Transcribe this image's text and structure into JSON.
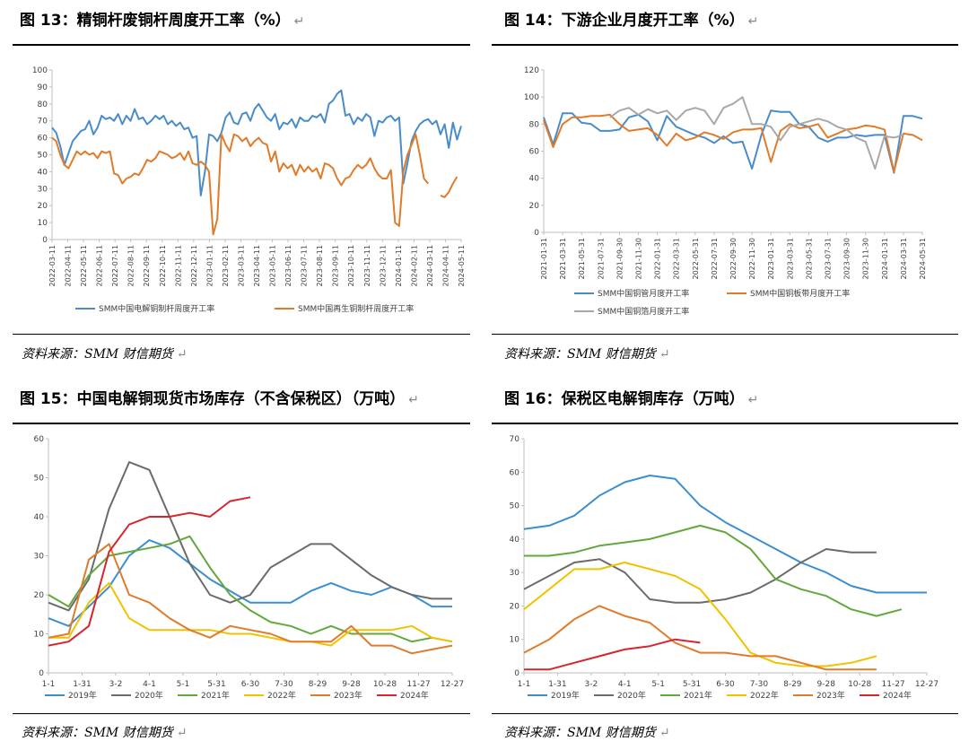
{
  "panels": [
    {
      "title": "图 13：精铜杆废铜杆周度开工率（%）",
      "source": "资料来源：SMM 财信期货"
    },
    {
      "title": "图 14：下游企业月度开工率（%）",
      "source": "资料来源：SMM 财信期货"
    },
    {
      "title": "图 15：中国电解铜现货市场库存（不含保税区）（万吨）",
      "source": "资料来源：SMM 财信期货"
    },
    {
      "title": "图 16：保税区电解铜库存（万吨）",
      "source": "资料来源：SMM 财信期货"
    }
  ],
  "return_glyph": "↵",
  "chart_data": [
    {
      "type": "line",
      "ylim": [
        0,
        100
      ],
      "yticks": [
        0,
        10,
        20,
        30,
        40,
        50,
        60,
        70,
        80,
        90,
        100
      ],
      "xtick_labels": [
        "2022-03-11",
        "2022-04-11",
        "2022-05-11",
        "2022-06-11",
        "2022-07-11",
        "2022-08-11",
        "2022-09-11",
        "2022-10-11",
        "2022-11-11",
        "2022-12-11",
        "2023-01-11",
        "2023-02-11",
        "2023-03-11",
        "2023-04-11",
        "2023-05-11",
        "2023-06-11",
        "2023-07-11",
        "2023-08-11",
        "2023-09-11",
        "2023-10-11",
        "2023-11-11",
        "2023-12-11",
        "2024-01-11",
        "2024-02-11",
        "2024-03-11",
        "2024-04-11",
        "2024-05-11"
      ],
      "series": [
        {
          "name": "SMM中国电解铜制杆周度开工率",
          "color": "#4a8cc8",
          "values": [
            66,
            63,
            55,
            44,
            51,
            58,
            61,
            64,
            65,
            70,
            62,
            66,
            73,
            71,
            72,
            70,
            74,
            68,
            73,
            70,
            77,
            71,
            72,
            68,
            70,
            73,
            71,
            73,
            68,
            70,
            67,
            69,
            65,
            66,
            60,
            61,
            26,
            40,
            62,
            61,
            58,
            63,
            72,
            75,
            69,
            68,
            74,
            75,
            70,
            77,
            80,
            76,
            72,
            70,
            74,
            65,
            69,
            68,
            71,
            66,
            72,
            70,
            70,
            73,
            72,
            74,
            69,
            80,
            82,
            86,
            88,
            73,
            74,
            68,
            72,
            70,
            74,
            72,
            61,
            70,
            69,
            72,
            73,
            70,
            72,
            33,
            45,
            58,
            64,
            68,
            70,
            71,
            68,
            70,
            62,
            68,
            54,
            69,
            59,
            67
          ]
        },
        {
          "name": "SMM中国再生铜制杆周度开工率",
          "color": "#e07b2a",
          "values": [
            60,
            58,
            50,
            44,
            42,
            47,
            52,
            50,
            52,
            50,
            51,
            48,
            52,
            51,
            52,
            39,
            38,
            33,
            36,
            37,
            39,
            38,
            42,
            47,
            46,
            48,
            52,
            51,
            50,
            48,
            49,
            51,
            47,
            52,
            45,
            44,
            46,
            44,
            40,
            3,
            12,
            62,
            56,
            52,
            62,
            61,
            58,
            60,
            55,
            58,
            60,
            57,
            56,
            46,
            52,
            40,
            45,
            42,
            44,
            38,
            44,
            40,
            43,
            40,
            42,
            36,
            45,
            44,
            42,
            36,
            32,
            36,
            37,
            41,
            44,
            42,
            44,
            48,
            42,
            38,
            36,
            36,
            41,
            10,
            8,
            40,
            50,
            56,
            62,
            50,
            36,
            33,
            null,
            null,
            26,
            25,
            28,
            33,
            37
          ]
        }
      ]
    },
    {
      "type": "line",
      "ylim": [
        0,
        120
      ],
      "yticks": [
        0,
        20,
        40,
        60,
        80,
        100,
        120
      ],
      "xtick_labels": [
        "2021-01-31",
        "2021-03-31",
        "2021-05-31",
        "2021-07-31",
        "2021-09-30",
        "2021-11-30",
        "2022-01-31",
        "2022-03-31",
        "2022-05-31",
        "2022-07-31",
        "2022-09-30",
        "2022-11-30",
        "2023-01-31",
        "2023-03-31",
        "2023-05-31",
        "2023-07-31",
        "2023-09-30",
        "2023-11-30",
        "2024-01-31",
        "2024-03-31",
        "2024-05-31"
      ],
      "series": [
        {
          "name": "SMM中国铜管月度开工率",
          "color": "#4a8cc8",
          "values": [
            85,
            65,
            88,
            88,
            81,
            80,
            75,
            75,
            76,
            85,
            87,
            82,
            68,
            86,
            78,
            75,
            72,
            70,
            66,
            71,
            66,
            67,
            47,
            72,
            90,
            89,
            89,
            80,
            78,
            70,
            67,
            70,
            70,
            72,
            71,
            72,
            72,
            44,
            86,
            86,
            84
          ]
        },
        {
          "name": "SMM中国铜板带月度开工率",
          "color": "#e07b2a",
          "values": [
            83,
            63,
            80,
            85,
            85,
            86,
            86,
            87,
            80,
            75,
            76,
            77,
            72,
            64,
            73,
            68,
            70,
            74,
            72,
            69,
            74,
            76,
            76,
            77,
            52,
            75,
            80,
            77,
            78,
            80,
            70,
            73,
            76,
            77,
            79,
            78,
            76,
            45,
            73,
            72,
            68
          ]
        },
        {
          "name": "SMM中国铜箔月度开工率",
          "color": "#a8a8a8",
          "values": [
            null,
            null,
            null,
            null,
            null,
            null,
            null,
            85,
            90,
            92,
            87,
            91,
            88,
            90,
            83,
            90,
            92,
            90,
            80,
            92,
            95,
            100,
            80,
            80,
            78,
            68,
            78,
            80,
            82,
            84,
            82,
            78,
            76,
            70,
            67,
            47,
            71,
            70,
            72
          ]
        }
      ]
    },
    {
      "type": "line",
      "ylim": [
        0,
        60
      ],
      "yticks": [
        0,
        10,
        20,
        30,
        40,
        50,
        60
      ],
      "xtick_labels": [
        "1-1",
        "1-31",
        "3-2",
        "4-1",
        "5-1",
        "5-31",
        "6-30",
        "7-30",
        "8-29",
        "9-28",
        "10-28",
        "11-27",
        "12-27"
      ],
      "series": [
        {
          "name": "2019年",
          "color": "#3b8fd0",
          "values": [
            14,
            12,
            17,
            22,
            30,
            34,
            32,
            28,
            24,
            21,
            18,
            18,
            18,
            21,
            23,
            21,
            20,
            22,
            20,
            17,
            17
          ]
        },
        {
          "name": "2020年",
          "color": "#6b6b6b",
          "values": [
            18,
            16,
            24,
            42,
            54,
            52,
            40,
            28,
            20,
            18,
            20,
            27,
            30,
            33,
            33,
            29,
            25,
            22,
            20,
            19,
            19
          ]
        },
        {
          "name": "2021年",
          "color": "#62a83c",
          "values": [
            20,
            17,
            25,
            30,
            31,
            32,
            33,
            35,
            27,
            20,
            16,
            13,
            12,
            10,
            12,
            10,
            10,
            10,
            8,
            9,
            8
          ]
        },
        {
          "name": "2022年",
          "color": "#f2c200",
          "values": [
            9,
            9,
            18,
            23,
            14,
            11,
            11,
            11,
            11,
            10,
            10,
            9,
            8,
            8,
            7,
            11,
            11,
            11,
            12,
            9,
            8
          ]
        },
        {
          "name": "2023年",
          "color": "#e07b2a",
          "values": [
            9,
            10,
            29,
            33,
            20,
            18,
            14,
            11,
            9,
            12,
            11,
            10,
            8,
            8,
            8,
            12,
            7,
            7,
            5,
            6,
            7
          ]
        },
        {
          "name": "2024年",
          "color": "#d8242e",
          "values": [
            7,
            8,
            12,
            31,
            38,
            40,
            40,
            41,
            40,
            44,
            45
          ]
        }
      ]
    },
    {
      "type": "line",
      "ylim": [
        0,
        70
      ],
      "yticks": [
        0,
        10,
        20,
        30,
        40,
        50,
        60,
        70
      ],
      "xtick_labels": [
        "1-1",
        "1-31",
        "3-2",
        "4-1",
        "5-1",
        "5-31",
        "6-30",
        "7-30",
        "8-29",
        "9-28",
        "10-28",
        "11-27",
        "12-27"
      ],
      "series": [
        {
          "name": "2019年",
          "color": "#3b8fd0",
          "values": [
            43,
            44,
            47,
            53,
            57,
            59,
            58,
            50,
            45,
            41,
            37,
            33,
            30,
            26,
            24,
            24,
            24
          ]
        },
        {
          "name": "2020年",
          "color": "#6b6b6b",
          "values": [
            25,
            29,
            33,
            34,
            30,
            22,
            21,
            21,
            22,
            24,
            28,
            33,
            37,
            36,
            36
          ]
        },
        {
          "name": "2021年",
          "color": "#62a83c",
          "values": [
            35,
            35,
            36,
            38,
            39,
            40,
            42,
            44,
            42,
            37,
            28,
            25,
            23,
            19,
            17,
            19
          ]
        },
        {
          "name": "2022年",
          "color": "#f2c200",
          "values": [
            19,
            25,
            31,
            31,
            33,
            31,
            29,
            25,
            16,
            6,
            3,
            2,
            2,
            3,
            5
          ]
        },
        {
          "name": "2023年",
          "color": "#e07b2a",
          "values": [
            6,
            10,
            16,
            20,
            17,
            15,
            9,
            6,
            6,
            5,
            5,
            3,
            1,
            1,
            1
          ]
        },
        {
          "name": "2024年",
          "color": "#d8242e",
          "values": [
            1,
            1,
            3,
            5,
            7,
            8,
            10,
            9
          ]
        }
      ]
    }
  ]
}
